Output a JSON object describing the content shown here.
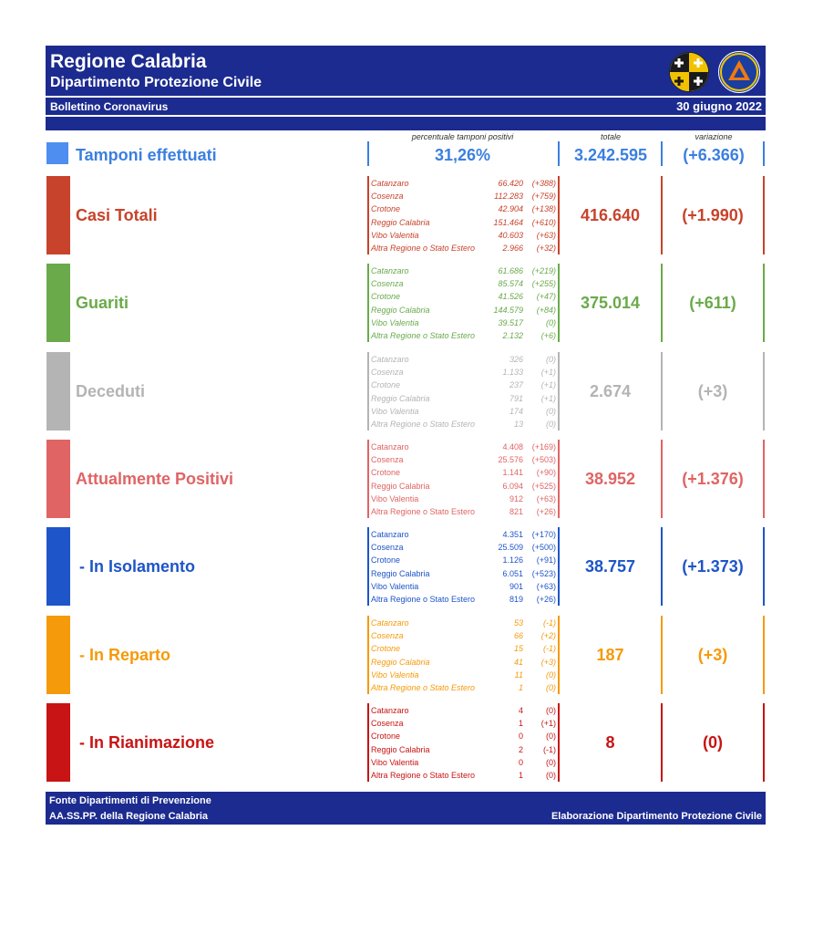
{
  "header": {
    "title": "Regione Calabria",
    "subtitle": "Dipartimento Protezione Civile",
    "bulletin": "Bollettino Coronavirus",
    "date": "30 giugno 2022"
  },
  "columns": {
    "percent": "percentuale tamponi positivi",
    "total": "totale",
    "variation": "variazione"
  },
  "tamponi": {
    "label": "Tamponi effettuati",
    "percent": "31,26%",
    "total": "3.242.595",
    "variation": "(+6.366)",
    "color": "#3b7fe0"
  },
  "provinces": [
    "Catanzaro",
    "Cosenza",
    "Crotone",
    "Reggio Calabria",
    "Vibo Valentia",
    "Altra Regione o Stato Estero"
  ],
  "sections": [
    {
      "label": "Casi Totali",
      "color": "#c8432b",
      "total": "416.640",
      "variation": "(+1.990)",
      "values": [
        "66.420",
        "112.283",
        "42.904",
        "151.464",
        "40.603",
        "2.966"
      ],
      "deltas": [
        "(+388)",
        "(+759)",
        "(+138)",
        "(+610)",
        "(+63)",
        "(+32)"
      ]
    },
    {
      "label": "Guariti",
      "color": "#6aaa4a",
      "total": "375.014",
      "variation": "(+611)",
      "values": [
        "61.686",
        "85.574",
        "41.526",
        "144.579",
        "39.517",
        "2.132"
      ],
      "deltas": [
        "(+219)",
        "(+255)",
        "(+47)",
        "(+84)",
        "(0)",
        "(+6)"
      ]
    },
    {
      "label": "Deceduti",
      "color": "#b4b4b4",
      "total": "2.674",
      "variation": "(+3)",
      "values": [
        "326",
        "1.133",
        "237",
        "791",
        "174",
        "13"
      ],
      "deltas": [
        "(0)",
        "(+1)",
        "(+1)",
        "(+1)",
        "(0)",
        "(0)"
      ]
    },
    {
      "label": "Attualmente Positivi",
      "color": "#e06464",
      "total": "38.952",
      "variation": "(+1.376)",
      "values": [
        "4.408",
        "25.576",
        "1.141",
        "6.094",
        "912",
        "821"
      ],
      "deltas": [
        "(+169)",
        "(+503)",
        "(+90)",
        "(+525)",
        "(+63)",
        "(+26)"
      ]
    },
    {
      "label": "- In Isolamento",
      "color": "#1e55c8",
      "total": "38.757",
      "variation": "(+1.373)",
      "values": [
        "4.351",
        "25.509",
        "1.126",
        "6.051",
        "901",
        "819"
      ],
      "deltas": [
        "(+170)",
        "(+500)",
        "(+91)",
        "(+523)",
        "(+63)",
        "(+26)"
      ]
    },
    {
      "label": "- In Reparto",
      "color": "#f59a0a",
      "total": "187",
      "variation": "(+3)",
      "values": [
        "53",
        "66",
        "15",
        "41",
        "11",
        "1"
      ],
      "deltas": [
        "(-1)",
        "(+2)",
        "(-1)",
        "(+3)",
        "(0)",
        "(0)"
      ]
    },
    {
      "label": "- In Rianimazione",
      "color": "#c81414",
      "total": "8",
      "variation": "(0)",
      "values": [
        "4",
        "1",
        "0",
        "2",
        "0",
        "1"
      ],
      "deltas": [
        "(0)",
        "(+1)",
        "(0)",
        "(-1)",
        "(0)",
        "(0)"
      ]
    }
  ],
  "footer": {
    "source_line1": "Fonte Dipartimenti di Prevenzione",
    "source_line2": "AA.SS.PP.  della Regione Calabria",
    "credit": "Elaborazione Dipartimento Protezione Civile"
  }
}
